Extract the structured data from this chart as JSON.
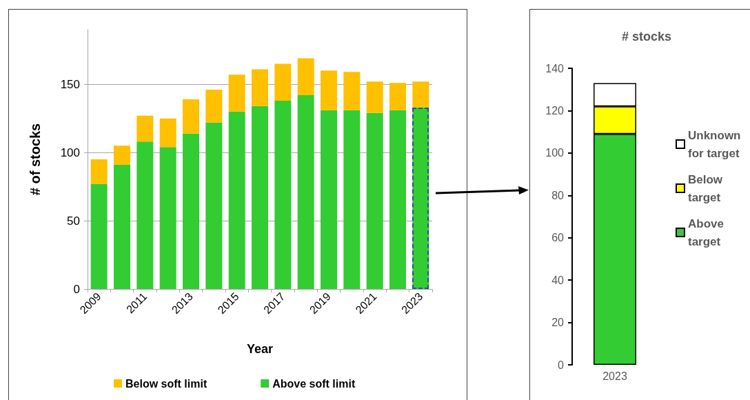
{
  "chart_data": [
    {
      "type": "bar",
      "stacked": true,
      "categories": [
        "2009",
        null,
        "2011",
        null,
        "2013",
        null,
        "2015",
        null,
        "2017",
        null,
        "2019",
        null,
        "2021",
        null,
        "2023"
      ],
      "series": [
        {
          "name": "Above soft limit",
          "color": "#33cc33",
          "values": [
            77,
            91,
            108,
            104,
            114,
            122,
            130,
            134,
            138,
            142,
            131,
            131,
            129,
            131,
            133
          ]
        },
        {
          "name": "Below soft limit",
          "color": "#ffc000",
          "values": [
            18,
            14,
            19,
            21,
            25,
            24,
            27,
            27,
            27,
            27,
            29,
            28,
            23,
            20,
            19
          ]
        }
      ],
      "xlabel": "Year",
      "ylabel": "# of stocks",
      "ylim": [
        0,
        190
      ],
      "yticks": [
        0,
        50,
        100,
        150
      ],
      "grid": "y",
      "legend": "bottom"
    },
    {
      "type": "bar",
      "stacked": true,
      "title": "# stocks",
      "categories": [
        "2023"
      ],
      "series": [
        {
          "name": "Above target",
          "color": "#33cc33",
          "values": [
            109
          ]
        },
        {
          "name": "Below target",
          "color": "#ffff00",
          "values": [
            13
          ]
        },
        {
          "name": "Unknown for target",
          "color": "#ffffff",
          "values": [
            11
          ]
        }
      ],
      "ylim": [
        0,
        140
      ],
      "yticks": [
        0,
        20,
        40,
        60,
        80,
        100,
        120,
        140
      ],
      "legend": "right"
    }
  ]
}
